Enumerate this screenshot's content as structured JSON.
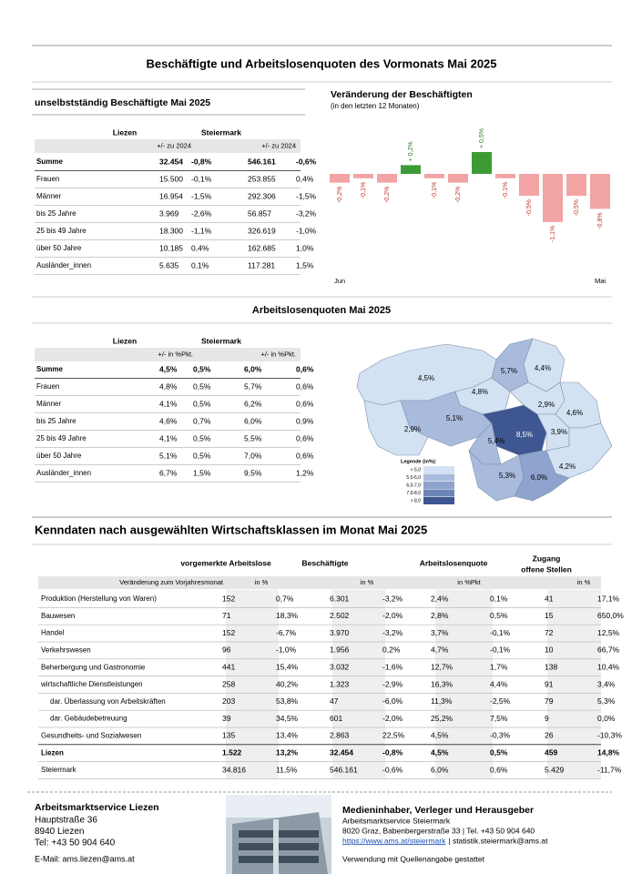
{
  "header": {
    "title": "Beschäftigte und Arbeitslosenquoten des Vormonats Mai 2025"
  },
  "employment_table": {
    "title": "unselbstständig Beschäftigte Mai 2025",
    "columns": [
      "Liezen",
      "Steiermark"
    ],
    "subheaders": [
      "+/- zu 2024",
      "+/- zu 2024"
    ],
    "rows": [
      [
        "Summe",
        "32.454",
        "-0,8%",
        "546.161",
        "-0,6%"
      ],
      [
        "Frauen",
        "15.500",
        "-0,1%",
        "253.855",
        "0,4%"
      ],
      [
        "Männer",
        "16.954",
        "-1,5%",
        "292.306",
        "-1,5%"
      ],
      [
        "bis 25 Jahre",
        "3.969",
        "-2,6%",
        "56.857",
        "-3,2%"
      ],
      [
        "25 bis 49 Jahre",
        "18.300",
        "-1,1%",
        "326.619",
        "-1,0%"
      ],
      [
        "über 50 Jahre",
        "10.185",
        "0,4%",
        "162.685",
        "1,0%"
      ],
      [
        "Ausländer_innen",
        "5.635",
        "0,1%",
        "117.281",
        "1,5%"
      ]
    ]
  },
  "chart_data": {
    "type": "bar",
    "title": "Veränderung der Beschäftigten",
    "subtitle": "(in den letzten 12 Monaten)",
    "categories": [
      "Jun",
      null,
      null,
      null,
      null,
      null,
      null,
      null,
      null,
      null,
      null,
      "Mai"
    ],
    "values": [
      -0.2,
      -0.1,
      -0.2,
      0.2,
      -0.1,
      -0.2,
      0.5,
      -0.1,
      -0.5,
      -1.1,
      -0.5,
      -0.8
    ],
    "value_labels": [
      "-0,2%",
      "-0,1%",
      "-0,2%",
      "+ 0,2%",
      "-0,1%",
      "-0,2%",
      "+ 0,5%",
      "-0,1%",
      "-0,5%",
      "-1,1%",
      "-0,5%",
      "-0,8%"
    ],
    "positive_color": "#3d9b35",
    "negative_color": "#f2a3a3"
  },
  "unemployment_table": {
    "title": "Arbeitslosenquoten Mai 2025",
    "columns": [
      "Liezen",
      "Steiermark"
    ],
    "subheaders": [
      "+/- in %Pkt.",
      "+/- in %Pkt."
    ],
    "rows": [
      [
        "Summe",
        "4,5%",
        "0,5%",
        "6,0%",
        "0,6%"
      ],
      [
        "Frauen",
        "4,8%",
        "0,5%",
        "5,7%",
        "0,6%"
      ],
      [
        "Männer",
        "4,1%",
        "0,5%",
        "6,2%",
        "0,6%"
      ],
      [
        "bis 25 Jahre",
        "4,6%",
        "0,7%",
        "6,0%",
        "0,9%"
      ],
      [
        "25 bis 49 Jahre",
        "4,1%",
        "0,5%",
        "5,5%",
        "0,6%"
      ],
      [
        "über 50 Jahre",
        "5,1%",
        "0,5%",
        "7,0%",
        "0,6%"
      ],
      [
        "Ausländer_innen",
        "6,7%",
        "1,5%",
        "9,5%",
        "1,2%"
      ]
    ]
  },
  "map": {
    "regions": [
      {
        "label": "4,5%",
        "color": "#d3e2f3"
      },
      {
        "label": "5,7%",
        "color": "#a9bbdc"
      },
      {
        "label": "4,4%",
        "color": "#d3e2f3"
      },
      {
        "label": "4,8%",
        "color": "#d3e2f3"
      },
      {
        "label": "2,9%",
        "color": "#d3e2f3"
      },
      {
        "label": "4,6%",
        "color": "#d3e2f3"
      },
      {
        "label": "5,1%",
        "color": "#a9bbdc"
      },
      {
        "label": "8,5%",
        "color": "#3e5691"
      },
      {
        "label": "3,9%",
        "color": "#d3e2f3"
      },
      {
        "label": "2,9%",
        "color": "#d3e2f3"
      },
      {
        "label": "5,4%",
        "color": "#a9bbdc"
      },
      {
        "label": "4,2%",
        "color": "#d3e2f3"
      },
      {
        "label": "5,3%",
        "color": "#a9bbdc"
      },
      {
        "label": "6,0%",
        "color": "#8ea4cf"
      }
    ],
    "legend": {
      "title": "Legende (in%):",
      "items": [
        {
          "label": "< 5,0",
          "color": "#d3e2f3"
        },
        {
          "label": "5,0-6,0",
          "color": "#a9bbdc"
        },
        {
          "label": "6,0-7,0",
          "color": "#8ea4cf"
        },
        {
          "label": "7,0-8,0",
          "color": "#6c85b8"
        },
        {
          "label": "> 8,0",
          "color": "#3e5691"
        }
      ]
    }
  },
  "sector_table": {
    "title": "Kenndaten nach ausgewählten Wirtschaftsklassen im Monat Mai 2025",
    "headers": [
      "vorgemerkte Arbeitslose",
      "Beschäftigte",
      "Arbeitslosenquote",
      "Zugang",
      "offene Stellen"
    ],
    "subheaders": [
      "Veränderung zum Vorjahresmonat",
      "in %",
      "in %",
      "in %Pkt",
      "in %"
    ],
    "rows": [
      [
        "Produktion (Herstellung von Waren)",
        "152",
        "0,7%",
        "6.301",
        "-3,2%",
        "2,4%",
        "0,1%",
        "41",
        "17,1%"
      ],
      [
        "Bauwesen",
        "71",
        "18,3%",
        "2.502",
        "-2,0%",
        "2,8%",
        "0,5%",
        "15",
        "650,0%"
      ],
      [
        "Handel",
        "152",
        "-6,7%",
        "3.970",
        "-3,2%",
        "3,7%",
        "-0,1%",
        "72",
        "12,5%"
      ],
      [
        "Verkehrswesen",
        "96",
        "-1,0%",
        "1.956",
        "0,2%",
        "4,7%",
        "-0,1%",
        "10",
        "66,7%"
      ],
      [
        "Beherbergung und Gastronomie",
        "441",
        "15,4%",
        "3.032",
        "-1,6%",
        "12,7%",
        "1,7%",
        "138",
        "10,4%"
      ],
      [
        "wirtschaftliche Dienstleistungen",
        "258",
        "40,2%",
        "1.323",
        "-2,9%",
        "16,3%",
        "4,4%",
        "91",
        "3,4%"
      ],
      [
        "dar. Überlassung von Arbeitskräften",
        "203",
        "53,8%",
        "47",
        "-6,0%",
        "11,3%",
        "-2,5%",
        "79",
        "5,3%"
      ],
      [
        "dar. Gebäudebetreuung",
        "39",
        "34,5%",
        "601",
        "-2,0%",
        "25,2%",
        "7,5%",
        "9",
        "0,0%"
      ],
      [
        "Gesundheits- und Sozialwesen",
        "135",
        "13,4%",
        "2.863",
        "22,5%",
        "4,5%",
        "-0,3%",
        "26",
        "-10,3%"
      ],
      [
        "Liezen",
        "1.522",
        "13,2%",
        "32.454",
        "-0,8%",
        "4,5%",
        "0,5%",
        "459",
        "14,8%"
      ],
      [
        "Steiermark",
        "34.816",
        "11,5%",
        "546.161",
        "-0,6%",
        "6,0%",
        "0,6%",
        "5.429",
        "-11,7%"
      ]
    ]
  },
  "footer": {
    "left": {
      "name": "Arbeitsmarktservice Liezen",
      "lines": [
        "Hauptstraße 36",
        "8940 Liezen",
        "Tel:  +43 50 904 640"
      ],
      "email": "E-Mail: ams.liezen@ams.at"
    },
    "right": {
      "title": "Medieninhaber, Verleger und Herausgeber",
      "lines": [
        "Arbeitsmarktservice Steiermark",
        "8020 Graz, Babenbergerstraße 33 | Tel.  +43 50 904 640"
      ],
      "link": "https://www.ams.at/steiermark",
      "contact": "| statistik.steiermark@ams.at",
      "note": "Verwendung mit Quellenangabe gestattet"
    }
  }
}
